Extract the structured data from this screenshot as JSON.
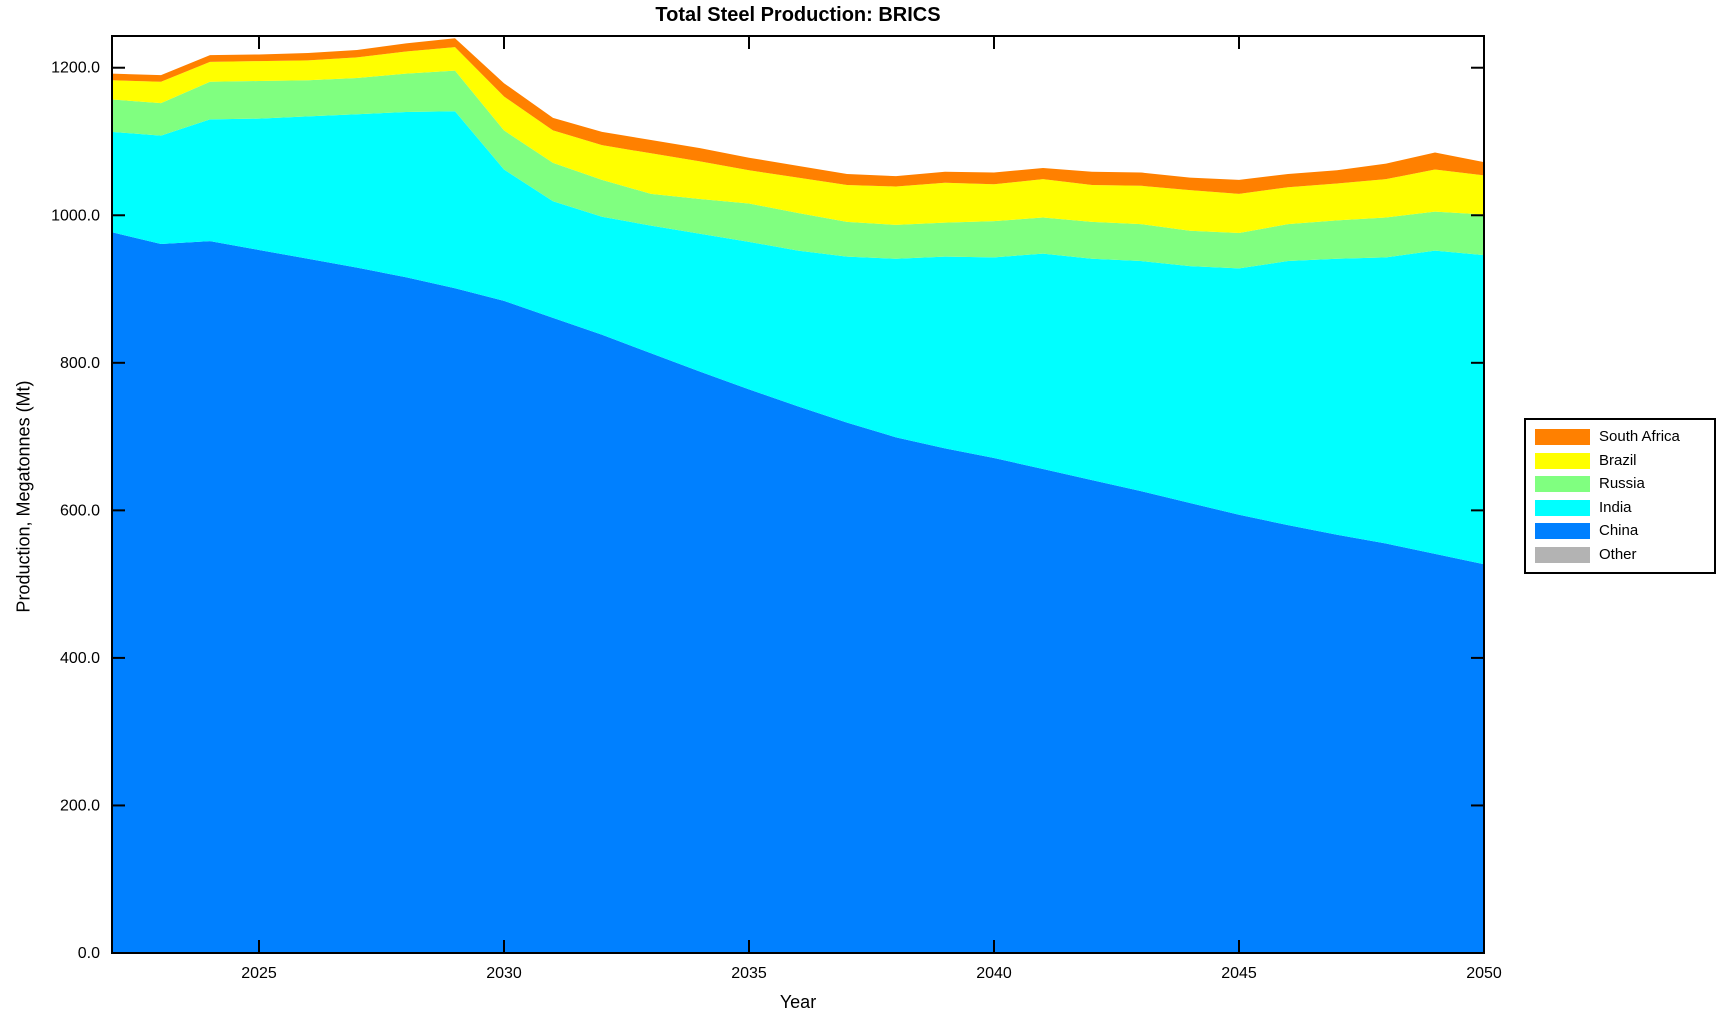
{
  "chart": {
    "title": "Total Steel Production: BRICS",
    "xlabel": "Year",
    "ylabel": "Production, Megatonnes (Mt)"
  },
  "legend": {
    "position": "right-outside",
    "items": [
      {
        "id": "south-africa",
        "label": "South Africa",
        "color": "#FF8000"
      },
      {
        "id": "brazil",
        "label": "Brazil",
        "color": "#FFFF00"
      },
      {
        "id": "russia",
        "label": "Russia",
        "color": "#80FF80"
      },
      {
        "id": "india",
        "label": "India",
        "color": "#00FFFF"
      },
      {
        "id": "china",
        "label": "China",
        "color": "#0080FF"
      },
      {
        "id": "other",
        "label": "Other",
        "color": "#B3B3B3"
      }
    ]
  },
  "chart_data": {
    "type": "area",
    "stacked": true,
    "title": "Total Steel Production: BRICS",
    "xlabel": "Year",
    "ylabel": "Production, Megatonnes (Mt)",
    "x": [
      2022,
      2023,
      2024,
      2025,
      2026,
      2027,
      2028,
      2029,
      2030,
      2031,
      2032,
      2033,
      2034,
      2035,
      2036,
      2037,
      2038,
      2039,
      2040,
      2041,
      2042,
      2043,
      2044,
      2045,
      2046,
      2047,
      2048,
      2049,
      2050
    ],
    "xlim": [
      2022,
      2050
    ],
    "ylim": [
      0,
      1243
    ],
    "grid": false,
    "x_ticks": [
      {
        "value": 2025,
        "label": "2025"
      },
      {
        "value": 2030,
        "label": "2030"
      },
      {
        "value": 2035,
        "label": "2035"
      },
      {
        "value": 2040,
        "label": "2040"
      },
      {
        "value": 2045,
        "label": "2045"
      },
      {
        "value": 2050,
        "label": "2050"
      }
    ],
    "y_ticks": [
      {
        "value": 0,
        "label": "0.0"
      },
      {
        "value": 200,
        "label": "200.0"
      },
      {
        "value": 400,
        "label": "400.0"
      },
      {
        "value": 600,
        "label": "600.0"
      },
      {
        "value": 800,
        "label": "800.0"
      },
      {
        "value": 1000,
        "label": "1000.0"
      },
      {
        "value": 1200,
        "label": "1200.0"
      }
    ],
    "series_stacking_order": "bottom-to-top",
    "series": [
      {
        "id": "china",
        "name": "China",
        "color": "#0080FF",
        "values": [
          977,
          961,
          965,
          953,
          941,
          929,
          916,
          901,
          884,
          861,
          838,
          813,
          788,
          764,
          741,
          719,
          699,
          684,
          671,
          656,
          641,
          626,
          610,
          594,
          580,
          567,
          555,
          541,
          527
        ]
      },
      {
        "id": "india",
        "name": "India",
        "color": "#00FFFF",
        "values": [
          136,
          147,
          165,
          178,
          193,
          208,
          224,
          240,
          178,
          158,
          160,
          173,
          187,
          200,
          211,
          225,
          242,
          260,
          272,
          292,
          300,
          312,
          321,
          334,
          358,
          374,
          388,
          411,
          419
        ]
      },
      {
        "id": "russia",
        "name": "Russia",
        "color": "#80FF80",
        "values": [
          44,
          44,
          51,
          51,
          49,
          49,
          52,
          55,
          53,
          52,
          50,
          43,
          47,
          52,
          51,
          47,
          46,
          46,
          49,
          49,
          50,
          50,
          48,
          48,
          50,
          52,
          54,
          53,
          55
        ]
      },
      {
        "id": "brazil",
        "name": "Brazil",
        "color": "#FFFF00",
        "values": [
          26,
          29,
          27,
          27,
          27,
          28,
          30,
          32,
          46,
          44,
          47,
          55,
          51,
          45,
          48,
          50,
          52,
          54,
          50,
          52,
          50,
          52,
          55,
          53,
          50,
          50,
          52,
          57,
          53
        ]
      },
      {
        "id": "south-africa",
        "name": "South Africa",
        "color": "#FF8000",
        "values": [
          9,
          9,
          9,
          9,
          10,
          10,
          11,
          12,
          18,
          17,
          18,
          18,
          18,
          17,
          16,
          15,
          14,
          15,
          16,
          15,
          18,
          18,
          17,
          19,
          18,
          18,
          21,
          23,
          18
        ]
      },
      {
        "id": "other",
        "name": "Other",
        "color": "#B3B3B3",
        "values": [
          0,
          0,
          0,
          0,
          0,
          0,
          0,
          0,
          0,
          0,
          0,
          0,
          0,
          0,
          0,
          0,
          0,
          0,
          0,
          0,
          0,
          0,
          0,
          0,
          0,
          0,
          0,
          0,
          0
        ]
      }
    ]
  }
}
